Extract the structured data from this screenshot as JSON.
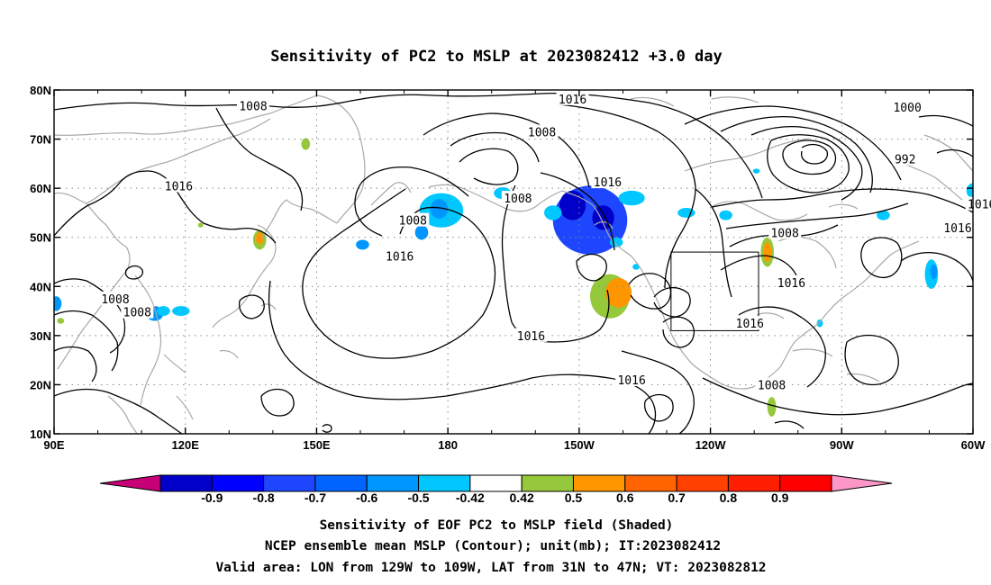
{
  "title": "Sensitivity of PC2 to MSLP at 2023082412 +3.0 day",
  "captions": [
    "Sensitivity of EOF PC2 to MSLP field (Shaded)",
    "NCEP ensemble mean MSLP (Contour); unit(mb); IT:2023082412",
    "Valid area: LON from 129W to 109W, LAT from 31N to 47N; VT: 2023082812"
  ],
  "map": {
    "lon_range": [
      90,
      300
    ],
    "lat_range": [
      10,
      80
    ],
    "lon_ticks": [
      {
        "value": 90,
        "label": "90E"
      },
      {
        "value": 120,
        "label": "120E"
      },
      {
        "value": 150,
        "label": "150E"
      },
      {
        "value": 180,
        "label": "180"
      },
      {
        "value": 210,
        "label": "150W"
      },
      {
        "value": 240,
        "label": "120W"
      },
      {
        "value": 270,
        "label": "90W"
      },
      {
        "value": 300,
        "label": "60W"
      }
    ],
    "lat_ticks": [
      {
        "value": 10,
        "label": "10N"
      },
      {
        "value": 20,
        "label": "20N"
      },
      {
        "value": 30,
        "label": "30N"
      },
      {
        "value": 40,
        "label": "40N"
      },
      {
        "value": 50,
        "label": "50N"
      },
      {
        "value": 60,
        "label": "60N"
      },
      {
        "value": 70,
        "label": "70N"
      },
      {
        "value": 80,
        "label": "80N"
      }
    ],
    "grid": true,
    "valid_area": {
      "lon": [
        231,
        251
      ],
      "lat": [
        31,
        47
      ]
    },
    "contour_labels": [
      {
        "text": "1008",
        "lon": 135.5,
        "lat": 76.8
      },
      {
        "text": "1016",
        "lon": 118.5,
        "lat": 60.5
      },
      {
        "text": "1008",
        "lon": 104.0,
        "lat": 37.5
      },
      {
        "text": "1008",
        "lon": 109.0,
        "lat": 34.8
      },
      {
        "text": "1016",
        "lon": 169.0,
        "lat": 46.2
      },
      {
        "text": "1008",
        "lon": 172.0,
        "lat": 53.5
      },
      {
        "text": "1016",
        "lon": 208.5,
        "lat": 78.2
      },
      {
        "text": "1008",
        "lon": 201.5,
        "lat": 71.5
      },
      {
        "text": "1016",
        "lon": 216.5,
        "lat": 61.3
      },
      {
        "text": "1008",
        "lon": 196.0,
        "lat": 58.0
      },
      {
        "text": "1016",
        "lon": 199.0,
        "lat": 30.0
      },
      {
        "text": "1016",
        "lon": 222.0,
        "lat": 21.0
      },
      {
        "text": "1016",
        "lon": 249.0,
        "lat": 32.5
      },
      {
        "text": "1016",
        "lon": 258.5,
        "lat": 40.8
      },
      {
        "text": "1008",
        "lon": 257.0,
        "lat": 51.0
      },
      {
        "text": "1008",
        "lon": 254.0,
        "lat": 20.0
      },
      {
        "text": "1000",
        "lon": 285.0,
        "lat": 76.5
      },
      {
        "text": "992",
        "lon": 284.5,
        "lat": 66.0
      },
      {
        "text": "1016",
        "lon": 302.0,
        "lat": 56.8
      },
      {
        "text": "1016",
        "lon": 296.5,
        "lat": 52.0
      }
    ],
    "shading": [
      {
        "lon": 212.5,
        "lat": 53.5,
        "rlon": 8.5,
        "rlat": 7.0,
        "color": "#1e46ff"
      },
      {
        "lon": 208.5,
        "lat": 56.5,
        "rlon": 3.0,
        "rlat": 3.0,
        "color": "#0000c8"
      },
      {
        "lon": 215.5,
        "lat": 54.0,
        "rlon": 2.5,
        "rlat": 2.5,
        "color": "#0000c8"
      },
      {
        "lon": 217.0,
        "lat": 38.0,
        "rlon": 4.5,
        "rlat": 4.5,
        "color": "#96c83c"
      },
      {
        "lon": 219.0,
        "lat": 38.7,
        "rlon": 3.0,
        "rlat": 3.0,
        "color": "#ff9600"
      },
      {
        "lon": 222.0,
        "lat": 58.0,
        "rlon": 3.0,
        "rlat": 1.5,
        "color": "#00c8ff"
      },
      {
        "lon": 178.5,
        "lat": 55.5,
        "rlon": 5.0,
        "rlat": 3.5,
        "color": "#00c8ff"
      },
      {
        "lon": 178.0,
        "lat": 55.8,
        "rlon": 2.0,
        "rlat": 2.0,
        "color": "#0096ff"
      },
      {
        "lon": 174.0,
        "lat": 51.0,
        "rlon": 1.5,
        "rlat": 1.5,
        "color": "#0096ff"
      },
      {
        "lon": 253.0,
        "lat": 47.0,
        "rlon": 1.5,
        "rlat": 3.0,
        "color": "#96c83c"
      },
      {
        "lon": 253.0,
        "lat": 47.0,
        "rlon": 0.9,
        "rlat": 2.0,
        "color": "#ff9600"
      },
      {
        "lon": 254.0,
        "lat": 15.5,
        "rlon": 1.0,
        "rlat": 2.0,
        "color": "#96c83c"
      },
      {
        "lon": 113.0,
        "lat": 34.5,
        "rlon": 2.0,
        "rlat": 1.5,
        "color": "#0096ff"
      },
      {
        "lon": 115.0,
        "lat": 35.0,
        "rlon": 1.5,
        "rlat": 1.0,
        "color": "#00c8ff"
      },
      {
        "lon": 119.0,
        "lat": 35.0,
        "rlon": 2.0,
        "rlat": 1.0,
        "color": "#00c8ff"
      },
      {
        "lon": 137.0,
        "lat": 49.5,
        "rlon": 1.5,
        "rlat": 2.0,
        "color": "#96c83c"
      },
      {
        "lon": 137.0,
        "lat": 49.8,
        "rlon": 0.9,
        "rlat": 1.2,
        "color": "#ff9600"
      },
      {
        "lon": 147.5,
        "lat": 69.0,
        "rlon": 1.0,
        "rlat": 1.2,
        "color": "#96c83c"
      },
      {
        "lon": 90.5,
        "lat": 36.5,
        "rlon": 1.2,
        "rlat": 1.5,
        "color": "#0096ff"
      },
      {
        "lon": 91.5,
        "lat": 33.0,
        "rlon": 0.8,
        "rlat": 0.6,
        "color": "#96c83c"
      },
      {
        "lon": 192.5,
        "lat": 59.0,
        "rlon": 2.0,
        "rlat": 1.2,
        "color": "#00c8ff"
      },
      {
        "lon": 204.0,
        "lat": 55.0,
        "rlon": 2.0,
        "rlat": 1.5,
        "color": "#00c8ff"
      },
      {
        "lon": 218.5,
        "lat": 49.0,
        "rlon": 1.5,
        "rlat": 1.0,
        "color": "#00c8ff"
      },
      {
        "lon": 234.5,
        "lat": 55.0,
        "rlon": 2.0,
        "rlat": 1.0,
        "color": "#00c8ff"
      },
      {
        "lon": 243.5,
        "lat": 54.5,
        "rlon": 1.5,
        "rlat": 1.0,
        "color": "#00c8ff"
      },
      {
        "lon": 290.5,
        "lat": 42.5,
        "rlon": 1.5,
        "rlat": 3.0,
        "color": "#00c8ff"
      },
      {
        "lon": 291.0,
        "lat": 43.0,
        "rlon": 0.8,
        "rlat": 1.5,
        "color": "#0096ff"
      },
      {
        "lon": 300.0,
        "lat": 59.5,
        "rlon": 1.5,
        "rlat": 1.5,
        "color": "#00c8ff"
      },
      {
        "lon": 279.5,
        "lat": 54.5,
        "rlon": 1.5,
        "rlat": 1.0,
        "color": "#00c8ff"
      },
      {
        "lon": 160.5,
        "lat": 48.5,
        "rlon": 1.5,
        "rlat": 1.0,
        "color": "#0096ff"
      },
      {
        "lon": 265.0,
        "lat": 32.5,
        "rlon": 0.7,
        "rlat": 0.8,
        "color": "#00c8ff"
      },
      {
        "lon": 250.5,
        "lat": 63.5,
        "rlon": 0.8,
        "rlat": 0.5,
        "color": "#00c8ff"
      },
      {
        "lon": 223.0,
        "lat": 44.0,
        "rlon": 0.8,
        "rlat": 0.6,
        "color": "#00c8ff"
      },
      {
        "lon": 123.5,
        "lat": 52.5,
        "rlon": 0.6,
        "rlat": 0.5,
        "color": "#96c83c"
      }
    ]
  },
  "colorbar": {
    "colors": [
      "#c80078",
      "#0000c8",
      "#0000ff",
      "#1e46ff",
      "#0064ff",
      "#0096ff",
      "#00c8ff",
      "#ffffff",
      "#96c83c",
      "#ff9600",
      "#ff6400",
      "#ff4100",
      "#ff1e00",
      "#ff0000",
      "#ff96c8"
    ],
    "labels": [
      "-0.9",
      "-0.8",
      "-0.7",
      "-0.6",
      "-0.5",
      "-0.42",
      "0.42",
      "0.5",
      "0.6",
      "0.7",
      "0.8",
      "0.9"
    ]
  }
}
